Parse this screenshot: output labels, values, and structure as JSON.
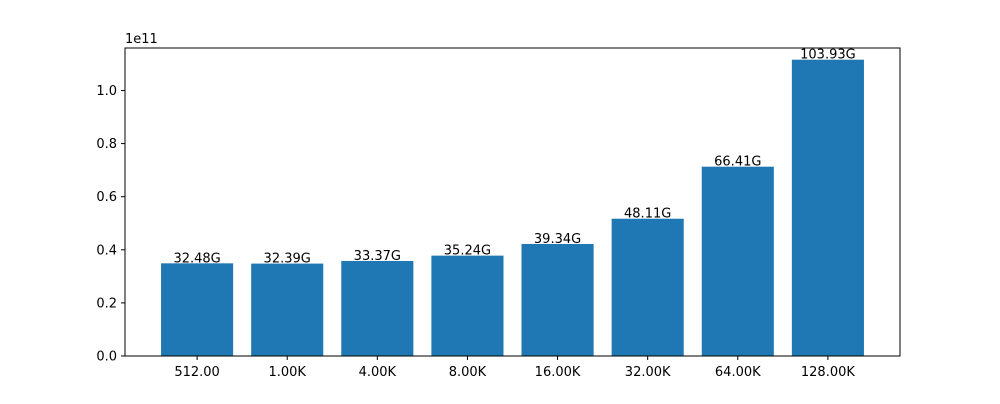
{
  "chart_data": {
    "type": "bar",
    "categories": [
      "512.00",
      "1.00K",
      "4.00K",
      "8.00K",
      "16.00K",
      "32.00K",
      "64.00K",
      "128.00K"
    ],
    "values": [
      34900000000,
      34800000000,
      35800000000,
      37800000000,
      42200000000,
      51700000000,
      71300000000,
      111600000000
    ],
    "data_labels": [
      "32.48G",
      "32.39G",
      "33.37G",
      "35.24G",
      "39.34G",
      "48.11G",
      "66.41G",
      "103.93G"
    ],
    "ylim": [
      0,
      116000000000
    ],
    "yticks": [
      0,
      20000000000,
      40000000000,
      60000000000,
      80000000000,
      100000000000
    ],
    "ytick_labels": [
      "0.0",
      "0.2",
      "0.4",
      "0.6",
      "0.8",
      "1.0"
    ],
    "y_offset_label": "1e11",
    "title": "",
    "xlabel": "",
    "ylabel": "",
    "grid": false,
    "bar_color": "#1f77b4"
  }
}
